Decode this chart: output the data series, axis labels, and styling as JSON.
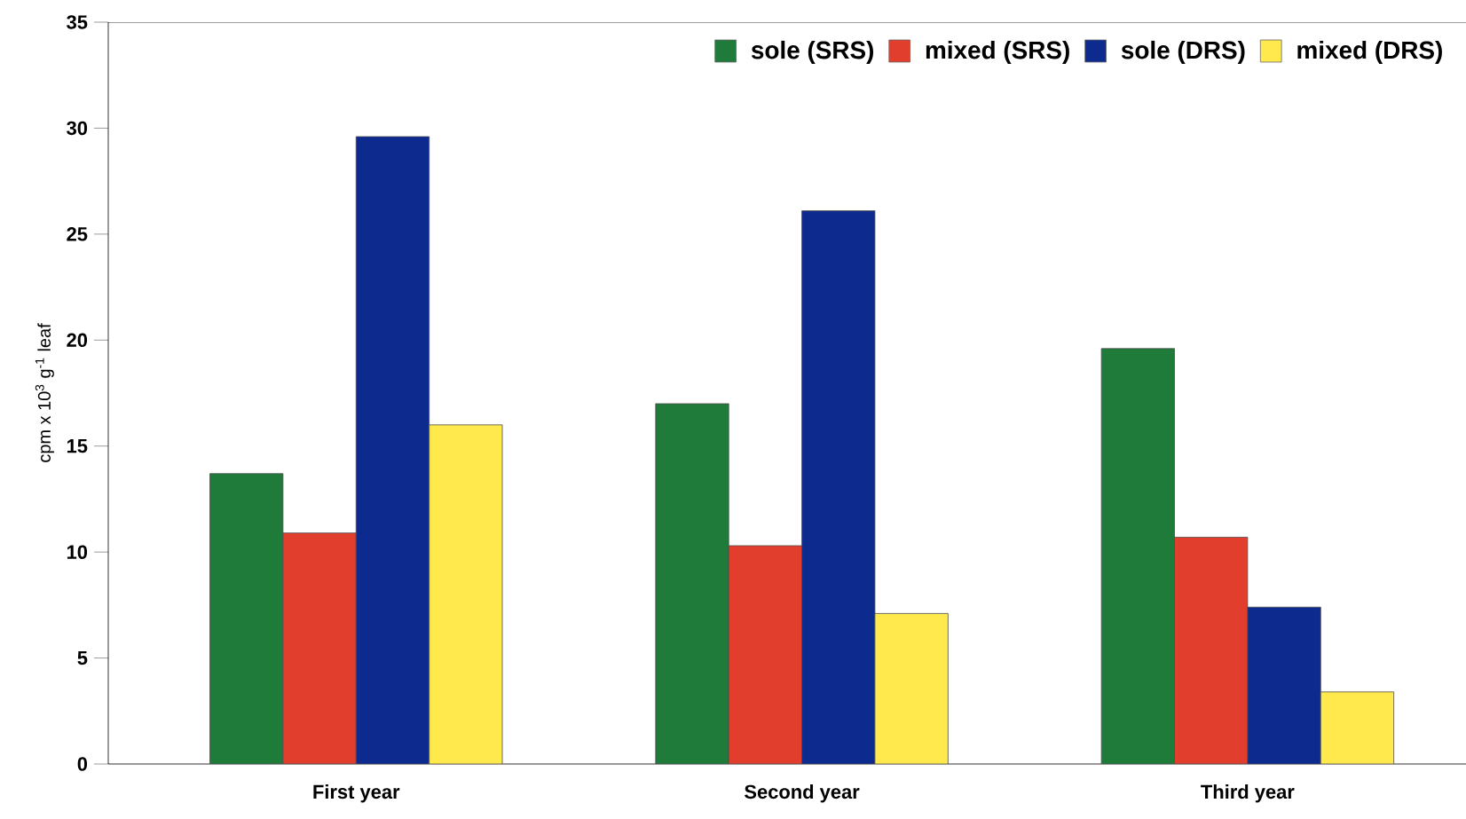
{
  "chart_data": {
    "type": "bar",
    "ylabel": "cpm x 10$^{3}$ g$^{-1}$ leaf",
    "categories": [
      "First year",
      "Second year",
      "Third year"
    ],
    "series": [
      {
        "name": "sole (SRS)",
        "color": "#1e7b3a",
        "values": [
          13.7,
          17.0,
          19.6
        ]
      },
      {
        "name": "mixed (SRS)",
        "color": "#e23e2e",
        "values": [
          10.9,
          10.3,
          10.7
        ]
      },
      {
        "name": "sole (DRS)",
        "color": "#0d2a8e",
        "values": [
          29.6,
          26.1,
          7.4
        ]
      },
      {
        "name": "mixed (DRS)",
        "color": "#ffe94c",
        "values": [
          16.0,
          7.1,
          3.4
        ]
      }
    ],
    "ylim": [
      0,
      35
    ],
    "yticks": [
      0,
      5,
      10,
      15,
      20,
      25,
      30,
      35
    ],
    "grid": false,
    "legend": "top right"
  }
}
